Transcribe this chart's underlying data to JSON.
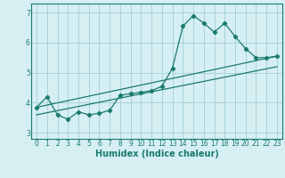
{
  "title": "",
  "xlabel": "Humidex (Indice chaleur)",
  "ylabel": "",
  "bg_color": "#d6eff2",
  "grid_color": "#a8d4d8",
  "line_color": "#1a7a6e",
  "xlim": [
    -0.5,
    23.5
  ],
  "ylim": [
    2.8,
    7.3
  ],
  "xticks": [
    0,
    1,
    2,
    3,
    4,
    5,
    6,
    7,
    8,
    9,
    10,
    11,
    12,
    13,
    14,
    15,
    16,
    17,
    18,
    19,
    20,
    21,
    22,
    23
  ],
  "yticks": [
    3,
    4,
    5,
    6,
    7
  ],
  "line1_x": [
    0,
    1,
    2,
    3,
    4,
    5,
    6,
    7,
    8,
    9,
    10,
    11,
    12,
    13,
    14,
    15,
    16,
    17,
    18,
    19,
    20,
    21,
    22,
    23
  ],
  "line1_y": [
    3.85,
    4.2,
    3.6,
    3.45,
    3.7,
    3.6,
    3.65,
    3.75,
    4.25,
    4.3,
    4.35,
    4.4,
    4.55,
    5.15,
    6.55,
    6.9,
    6.65,
    6.35,
    6.65,
    6.2,
    5.8,
    5.5,
    5.5,
    5.55
  ],
  "line2_x": [
    0,
    23
  ],
  "line2_y": [
    3.85,
    5.55
  ],
  "line3_x": [
    0,
    23
  ],
  "line3_y": [
    3.6,
    5.2
  ],
  "tick_fontsize": 5.5,
  "xlabel_fontsize": 7
}
